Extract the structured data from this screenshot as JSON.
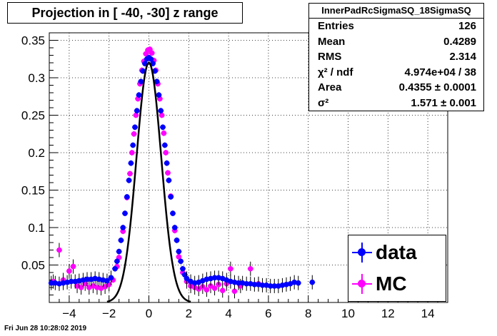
{
  "title": "Projection in [ -40, -30] z range",
  "stats": {
    "name": "InnerPadRcSigmaSQ_18SigmaSQ",
    "rows": [
      {
        "key": "Entries",
        "value": "126"
      },
      {
        "key": "Mean",
        "value": "0.4289"
      },
      {
        "key": "RMS",
        "value": "2.314"
      },
      {
        "key": "χ² / ndf",
        "value": "4.974e+04 / 38"
      },
      {
        "key": "Area",
        "value": "0.4355 ± 0.0001"
      },
      {
        "key": "σ²",
        "value": "1.571 ± 0.001"
      }
    ]
  },
  "legend": {
    "entries": [
      {
        "label": "data",
        "color": "#0000ff"
      },
      {
        "label": "MC",
        "color": "#ff00ff"
      }
    ]
  },
  "datestamp": "Fri Jun 28 10:28:02 2019",
  "chart_data": {
    "type": "scatter",
    "xlim": [
      -5,
      15
    ],
    "ylim": [
      0,
      0.36
    ],
    "x_ticks": [
      -4,
      -2,
      0,
      2,
      4,
      6,
      8,
      10,
      12,
      14
    ],
    "y_ticks": [
      0.05,
      0.1,
      0.15,
      0.2,
      0.25,
      0.3,
      0.35
    ],
    "grid": true,
    "legend_position": "bottom-right",
    "fit": {
      "type": "gaussian",
      "mean": 0.0,
      "sigma": 0.62,
      "amplitude": 0.32,
      "x_range": [
        -2.1,
        2.1
      ],
      "color": "#000000"
    },
    "series": [
      {
        "name": "data",
        "color": "#0000ff",
        "points": [
          [
            -4.9,
            0.026
          ],
          [
            -4.7,
            0.026
          ],
          [
            -4.5,
            0.025
          ],
          [
            -4.3,
            0.026
          ],
          [
            -4.1,
            0.027
          ],
          [
            -3.9,
            0.028
          ],
          [
            -3.7,
            0.028
          ],
          [
            -3.5,
            0.029
          ],
          [
            -3.3,
            0.03
          ],
          [
            -3.1,
            0.031
          ],
          [
            -2.9,
            0.031
          ],
          [
            -2.7,
            0.032
          ],
          [
            -2.5,
            0.031
          ],
          [
            -2.3,
            0.03
          ],
          [
            -2.1,
            0.029
          ],
          [
            -1.9,
            0.033
          ],
          [
            -1.7,
            0.045
          ],
          [
            -1.6,
            0.055
          ],
          [
            -1.5,
            0.068
          ],
          [
            -1.4,
            0.083
          ],
          [
            -1.3,
            0.1
          ],
          [
            -1.2,
            0.119
          ],
          [
            -1.1,
            0.141
          ],
          [
            -1.0,
            0.163
          ],
          [
            -0.9,
            0.186
          ],
          [
            -0.8,
            0.21
          ],
          [
            -0.7,
            0.234
          ],
          [
            -0.6,
            0.256
          ],
          [
            -0.5,
            0.277
          ],
          [
            -0.4,
            0.295
          ],
          [
            -0.3,
            0.309
          ],
          [
            -0.2,
            0.319
          ],
          [
            -0.1,
            0.325
          ],
          [
            0.0,
            0.327
          ],
          [
            0.1,
            0.325
          ],
          [
            0.2,
            0.319
          ],
          [
            0.3,
            0.309
          ],
          [
            0.4,
            0.295
          ],
          [
            0.5,
            0.277
          ],
          [
            0.6,
            0.256
          ],
          [
            0.7,
            0.234
          ],
          [
            0.8,
            0.21
          ],
          [
            0.9,
            0.186
          ],
          [
            1.0,
            0.163
          ],
          [
            1.1,
            0.141
          ],
          [
            1.2,
            0.119
          ],
          [
            1.3,
            0.1
          ],
          [
            1.4,
            0.083
          ],
          [
            1.5,
            0.068
          ],
          [
            1.6,
            0.055
          ],
          [
            1.7,
            0.045
          ],
          [
            1.8,
            0.037
          ],
          [
            1.9,
            0.032
          ],
          [
            2.1,
            0.028
          ],
          [
            2.3,
            0.026
          ],
          [
            2.5,
            0.027
          ],
          [
            2.7,
            0.029
          ],
          [
            2.9,
            0.031
          ],
          [
            3.1,
            0.032
          ],
          [
            3.3,
            0.033
          ],
          [
            3.5,
            0.033
          ],
          [
            3.7,
            0.032
          ],
          [
            3.9,
            0.03
          ],
          [
            4.1,
            0.028
          ],
          [
            4.3,
            0.027
          ],
          [
            4.5,
            0.026
          ],
          [
            4.7,
            0.026
          ],
          [
            4.9,
            0.025
          ],
          [
            5.1,
            0.025
          ],
          [
            5.3,
            0.024
          ],
          [
            5.5,
            0.024
          ],
          [
            5.7,
            0.023
          ],
          [
            5.9,
            0.023
          ],
          [
            6.1,
            0.022
          ],
          [
            6.3,
            0.022
          ],
          [
            6.5,
            0.022
          ],
          [
            6.7,
            0.023
          ],
          [
            6.9,
            0.024
          ],
          [
            7.1,
            0.025
          ],
          [
            7.3,
            0.027
          ],
          [
            7.5,
            0.026
          ],
          [
            8.2,
            0.027
          ]
        ]
      },
      {
        "name": "MC",
        "color": "#ff00ff",
        "points": [
          [
            -4.8,
            0.028
          ],
          [
            -4.5,
            0.07
          ],
          [
            -4.3,
            0.03
          ],
          [
            -4.0,
            0.042
          ],
          [
            -3.8,
            0.048
          ],
          [
            -3.6,
            0.022
          ],
          [
            -3.4,
            0.02
          ],
          [
            -3.2,
            0.025
          ],
          [
            -3.0,
            0.02
          ],
          [
            -2.8,
            0.022
          ],
          [
            -2.6,
            0.02
          ],
          [
            -2.4,
            0.019
          ],
          [
            -2.2,
            0.021
          ],
          [
            -2.0,
            0.024
          ],
          [
            -1.8,
            0.03
          ],
          [
            -1.6,
            0.048
          ],
          [
            -1.5,
            0.06
          ],
          [
            -1.3,
            0.095
          ],
          [
            -1.1,
            0.14
          ],
          [
            -0.95,
            0.172
          ],
          [
            -0.85,
            0.2
          ],
          [
            -0.75,
            0.225
          ],
          [
            -0.65,
            0.25
          ],
          [
            -0.55,
            0.272
          ],
          [
            -0.45,
            0.292
          ],
          [
            -0.35,
            0.31
          ],
          [
            -0.25,
            0.322
          ],
          [
            -0.15,
            0.332
          ],
          [
            -0.05,
            0.337
          ],
          [
            0.05,
            0.338
          ],
          [
            0.15,
            0.333
          ],
          [
            0.25,
            0.323
          ],
          [
            0.35,
            0.31
          ],
          [
            0.45,
            0.292
          ],
          [
            0.55,
            0.272
          ],
          [
            0.65,
            0.25
          ],
          [
            0.75,
            0.226
          ],
          [
            0.85,
            0.2
          ],
          [
            0.95,
            0.173
          ],
          [
            1.1,
            0.142
          ],
          [
            1.3,
            0.096
          ],
          [
            1.5,
            0.061
          ],
          [
            1.7,
            0.04
          ],
          [
            1.9,
            0.028
          ],
          [
            2.1,
            0.022
          ],
          [
            2.3,
            0.02
          ],
          [
            2.5,
            0.018
          ],
          [
            2.7,
            0.021
          ],
          [
            2.9,
            0.017
          ],
          [
            3.1,
            0.022
          ],
          [
            3.3,
            0.019
          ],
          [
            3.5,
            0.024
          ],
          [
            3.7,
            0.016
          ],
          [
            3.9,
            0.025
          ],
          [
            4.1,
            0.045
          ],
          [
            4.3,
            0.015
          ],
          [
            4.6,
            0.022
          ],
          [
            5.1,
            0.045
          ],
          [
            5.5,
            0.025
          ]
        ]
      }
    ]
  }
}
